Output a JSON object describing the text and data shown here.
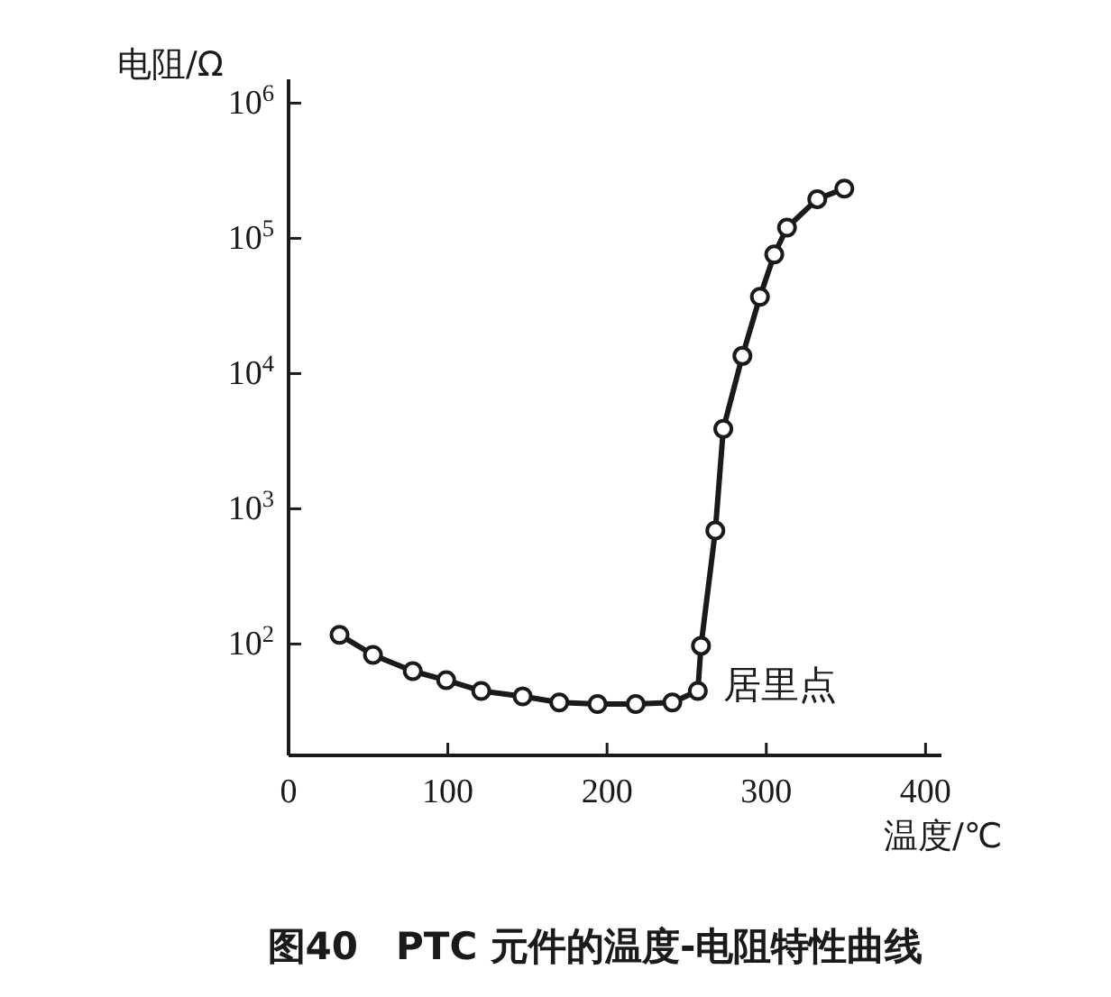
{
  "chart_data": {
    "type": "line",
    "title": "图40　PTC 元件的温度-电阻特性曲线",
    "xlabel": "温度/℃",
    "ylabel": "电阻/Ω",
    "x": [
      32,
      53,
      78,
      99,
      121,
      147,
      170,
      194,
      218,
      241,
      257,
      259,
      268,
      273,
      285,
      296,
      305,
      313,
      332,
      349
    ],
    "series": [
      {
        "color": "#1a1a1a",
        "values": [
          117,
          83,
          63,
          54,
          45,
          41,
          37,
          36,
          36,
          37,
          45,
          97,
          690,
          3900,
          13500,
          37000,
          76000,
          120000,
          195000,
          233000
        ]
      }
    ],
    "log": "y",
    "marker": "circle",
    "line_style": "solid",
    "xlim": [
      0,
      410
    ],
    "ylim": [
      15,
      1500000
    ],
    "xticks": [
      0,
      100,
      200,
      300,
      400
    ],
    "yticks": [
      {
        "value": 100,
        "label": "10$^{2}$"
      },
      {
        "value": 1000,
        "label": "10$^{3}$"
      },
      {
        "value": 10000,
        "label": "10$^{4}$"
      },
      {
        "value": 100000,
        "label": "10$^{5}$"
      },
      {
        "value": 1000000,
        "label": "10$^{6}$"
      }
    ],
    "annotations": [
      {
        "text": "居里点",
        "x": 257,
        "y": 45
      }
    ]
  }
}
